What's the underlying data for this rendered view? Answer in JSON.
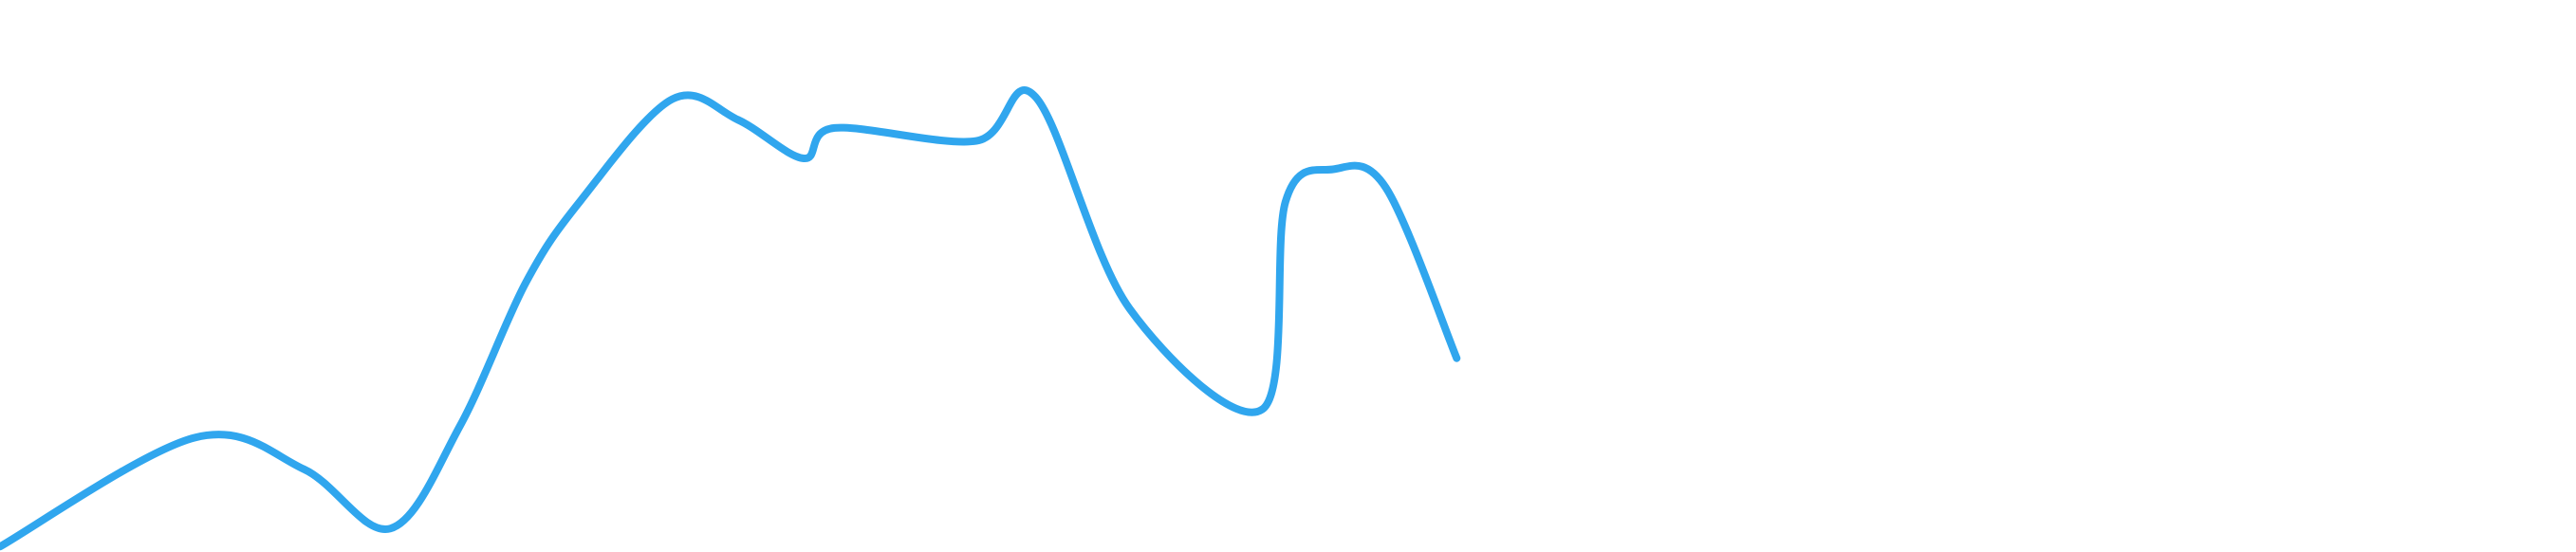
{
  "chart_data": {
    "type": "line",
    "title": "",
    "xlabel": "",
    "ylabel": "",
    "grid": false,
    "legend": "none",
    "xlim": [
      0,
      20
    ],
    "ylim": [
      0,
      100
    ],
    "x": [
      0,
      1.51,
      2.36,
      3.03,
      3.57,
      4.08,
      4.51,
      5.22,
      5.73,
      6.24,
      6.48,
      7.58,
      8.04,
      8.77,
      9.8,
      9.98,
      10.35,
      10.76,
      11.31
    ],
    "series": [
      {
        "values": [
          0.3,
          20.3,
          14.5,
          3.6,
          22.4,
          48.7,
          63.9,
          82.5,
          78.7,
          71.6,
          77.2,
          74.8,
          82.9,
          44.0,
          25.5,
          63.6,
          69.6,
          66.2,
          34.9
        ],
        "color": "#30a6ee"
      }
    ]
  }
}
